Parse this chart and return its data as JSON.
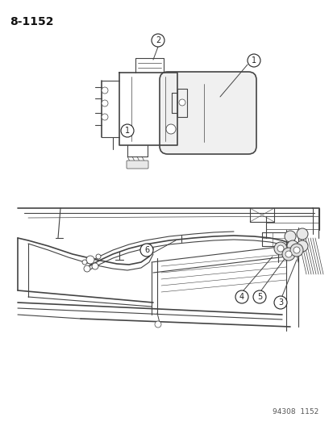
{
  "title": "8-1152",
  "footer": "94308  1152",
  "bg_color": "#ffffff",
  "line_color": "#444444",
  "fig_width": 4.14,
  "fig_height": 5.33,
  "dpi": 100
}
